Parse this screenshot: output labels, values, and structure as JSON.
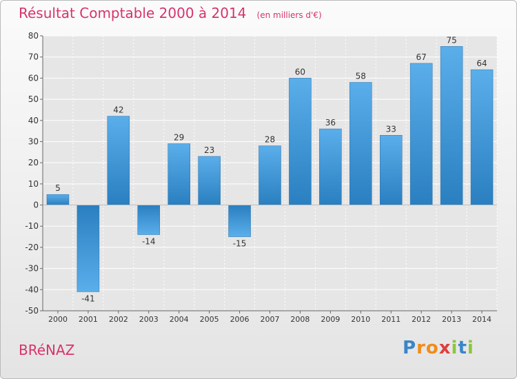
{
  "title": "Résultat Comptable 2000 à 2014",
  "subtitle": "(en milliers d'€)",
  "place_name": "BRéNAZ",
  "logo": {
    "letters": [
      "P",
      "r",
      "o",
      "x",
      "i",
      "t",
      "i"
    ],
    "colors": [
      "#3a86c8",
      "#f08c1a",
      "#f08c1a",
      "#e23c3c",
      "#8cc63f",
      "#3a86c8",
      "#8cc63f"
    ]
  },
  "colors": {
    "bar_top": "#5aaeea",
    "bar_bottom": "#2a7fc0",
    "title": "#d6336c",
    "text": "#333333"
  },
  "chart_data": {
    "type": "bar",
    "categories": [
      "2000",
      "2001",
      "2002",
      "2003",
      "2004",
      "2005",
      "2006",
      "2007",
      "2008",
      "2009",
      "2010",
      "2011",
      "2012",
      "2013",
      "2014"
    ],
    "values": [
      5,
      -41,
      42,
      -14,
      29,
      23,
      -15,
      28,
      60,
      36,
      58,
      33,
      67,
      75,
      64
    ],
    "data_labels": [
      "5",
      "-41",
      "42",
      "-14",
      "29",
      "23",
      "-15",
      "28",
      "60",
      "36",
      "58",
      "33",
      "67",
      "75",
      "64"
    ],
    "yticks": [
      80,
      70,
      60,
      50,
      40,
      30,
      20,
      10,
      0,
      -10,
      -20,
      -30,
      -40,
      -50
    ],
    "ylim": [
      -50,
      80
    ],
    "grid": true,
    "legend": false
  }
}
